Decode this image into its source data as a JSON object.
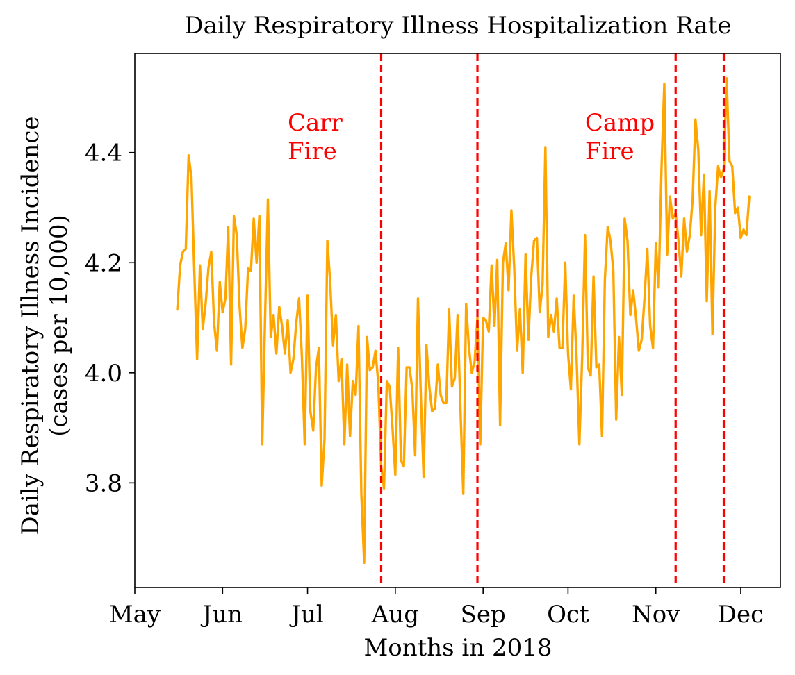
{
  "chart_data": {
    "type": "line",
    "title": "Daily Respiratory Illness Hospitalization Rate",
    "xlabel": "Months in 2018",
    "ylabel_lines": [
      "Daily Respiratory Illness Incidence",
      "(cases per 10,000)"
    ],
    "x_ticks": [
      {
        "date": "2018-05-01",
        "label": "May"
      },
      {
        "date": "2018-06-01",
        "label": "Jun"
      },
      {
        "date": "2018-07-01",
        "label": "Jul"
      },
      {
        "date": "2018-08-01",
        "label": "Aug"
      },
      {
        "date": "2018-09-01",
        "label": "Sep"
      },
      {
        "date": "2018-10-01",
        "label": "Oct"
      },
      {
        "date": "2018-11-01",
        "label": "Nov"
      },
      {
        "date": "2018-12-01",
        "label": "Dec"
      }
    ],
    "y_ticks": [
      {
        "value": 3.8,
        "label": "3.8"
      },
      {
        "value": 4.0,
        "label": "4.0"
      },
      {
        "value": 4.2,
        "label": "4.2"
      },
      {
        "value": 4.4,
        "label": "4.4"
      }
    ],
    "xlim": [
      "2018-05-01",
      "2018-12-15"
    ],
    "ylim": [
      3.61,
      4.58
    ],
    "grid": false,
    "colors": {
      "series": "#FFA500",
      "event_line": "#FF0000",
      "annotation": "#FF0000"
    },
    "event_lines": [
      {
        "date": "2018-07-27"
      },
      {
        "date": "2018-08-30"
      },
      {
        "date": "2018-11-08"
      },
      {
        "date": "2018-11-25"
      }
    ],
    "annotations": [
      {
        "date": "2018-06-24",
        "y": 4.44,
        "lines": [
          "Carr",
          "Fire"
        ]
      },
      {
        "date": "2018-10-07",
        "y": 4.44,
        "lines": [
          "Camp",
          "Fire"
        ]
      }
    ],
    "series": [
      {
        "start_date": "2018-05-16",
        "values": [
          4.115,
          4.195,
          4.22,
          4.225,
          4.395,
          4.355,
          4.185,
          4.025,
          4.195,
          4.08,
          4.125,
          4.19,
          4.22,
          4.09,
          4.04,
          4.165,
          4.11,
          4.135,
          4.265,
          4.015,
          4.285,
          4.25,
          4.12,
          4.045,
          4.08,
          4.19,
          4.185,
          4.28,
          4.2,
          4.285,
          3.87,
          4.1,
          4.315,
          4.065,
          4.105,
          4.035,
          4.12,
          4.085,
          4.035,
          4.095,
          4.0,
          4.025,
          4.09,
          4.135,
          4.03,
          3.87,
          4.14,
          3.93,
          3.895,
          4.01,
          4.045,
          3.795,
          3.88,
          4.24,
          4.165,
          4.05,
          4.105,
          3.985,
          4.025,
          3.87,
          4.015,
          3.885,
          3.985,
          3.96,
          4.085,
          3.78,
          3.655,
          4.065,
          4.005,
          4.01,
          4.04,
          3.98,
          3.83,
          3.79,
          3.985,
          3.975,
          3.9,
          3.815,
          4.045,
          3.84,
          3.83,
          4.01,
          4.01,
          3.97,
          3.85,
          4.135,
          3.96,
          3.81,
          4.05,
          3.975,
          3.93,
          3.935,
          4.015,
          3.96,
          3.945,
          3.945,
          4.115,
          3.975,
          3.99,
          4.105,
          3.935,
          3.78,
          4.125,
          4.045,
          4.0,
          4.02,
          4.1,
          3.87,
          4.1,
          4.095,
          4.075,
          4.195,
          4.085,
          4.205,
          3.905,
          4.2,
          4.235,
          4.15,
          4.295,
          4.19,
          4.04,
          4.115,
          4.0,
          4.215,
          4.06,
          4.175,
          4.24,
          4.245,
          4.11,
          4.16,
          4.41,
          4.065,
          4.105,
          4.075,
          4.135,
          4.045,
          4.045,
          4.2,
          4.035,
          3.97,
          4.14,
          4.03,
          3.87,
          4.03,
          4.25,
          4.01,
          3.995,
          4.175,
          4.01,
          4.015,
          3.885,
          4.17,
          4.265,
          4.24,
          4.185,
          3.915,
          4.065,
          3.96,
          4.28,
          4.24,
          4.105,
          4.15,
          4.1,
          4.04,
          4.06,
          4.135,
          4.225,
          4.085,
          4.045,
          4.235,
          4.155,
          4.37,
          4.525,
          4.215,
          4.32,
          4.28,
          4.29,
          4.24,
          4.175,
          4.28,
          4.22,
          4.25,
          4.315,
          4.46,
          4.405,
          4.25,
          4.36,
          4.13,
          4.33,
          4.07,
          4.3,
          4.375,
          4.355,
          4.37,
          4.535,
          4.385,
          4.375,
          4.29,
          4.3,
          4.245,
          4.26,
          4.25,
          4.32
        ]
      }
    ]
  }
}
